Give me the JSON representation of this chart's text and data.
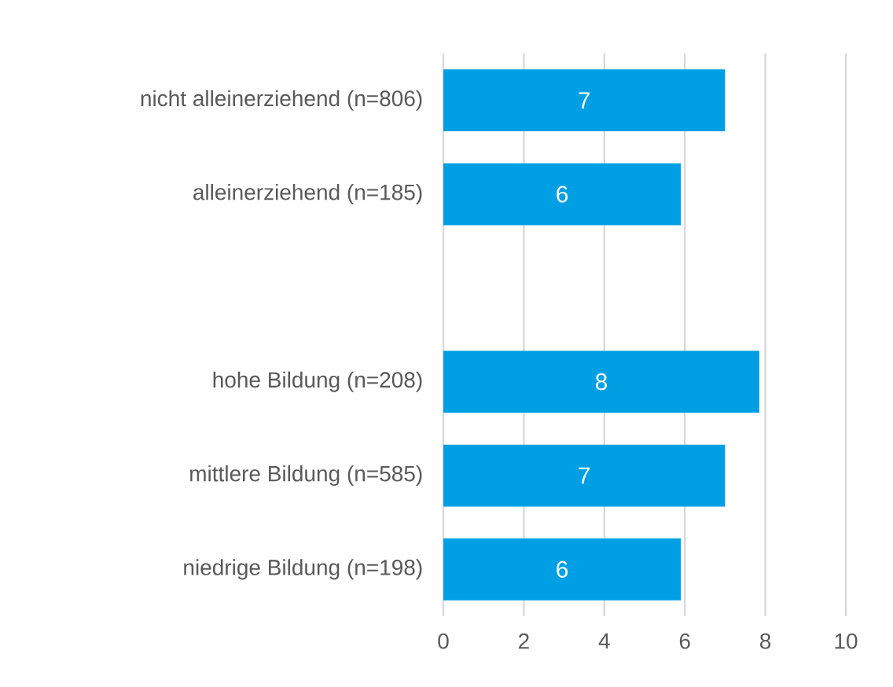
{
  "chart_data": {
    "type": "bar",
    "orientation": "horizontal",
    "categories": [
      "nicht alleinerziehend (n=806)",
      "alleinerziehend (n=185)",
      null,
      "hohe Bildung (n=208)",
      "mittlere Bildung (n=585)",
      "niedrige Bildung (n=198)"
    ],
    "values": [
      7.0,
      5.9,
      null,
      7.85,
      7.0,
      5.9
    ],
    "value_labels": [
      "7",
      "6",
      null,
      "8",
      "7",
      "6"
    ],
    "color": "#009fe3",
    "xlim": [
      0,
      10
    ],
    "xticks": [
      0,
      2,
      4,
      6,
      8,
      10
    ],
    "grid": "x"
  }
}
